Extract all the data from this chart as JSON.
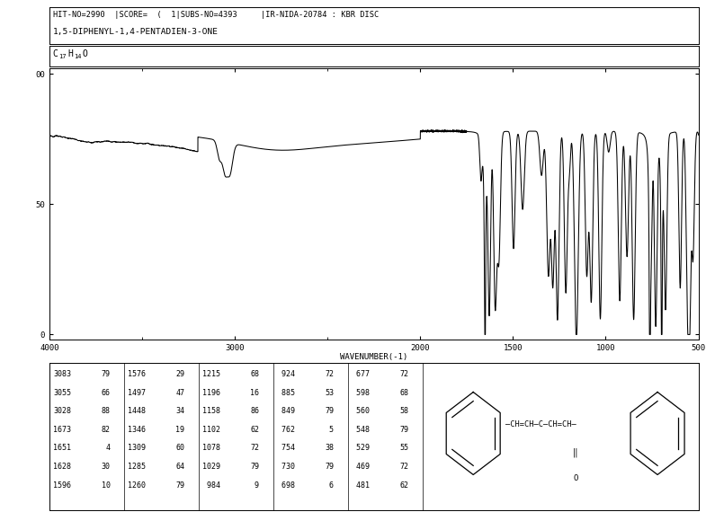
{
  "title_line1": "HIT-NO=2990  |SCORE=  (  1|SUBS-NO=4393     |IR-NIDA-20784 : KBR DISC",
  "title_line2": "1,5-DIPHENYL-1,4-PENTADIEN-3-ONE",
  "xlabel": "WAVENUMBER(-1)",
  "xmin": 4000,
  "xmax": 500,
  "ymin": 0,
  "ymax": 100,
  "xticks": [
    4000,
    3000,
    2000,
    1500,
    1000,
    500
  ],
  "peak_table": [
    [
      3083,
      79,
      1576,
      29,
      1215,
      68,
      924,
      72,
      677,
      72
    ],
    [
      3055,
      66,
      1497,
      47,
      1196,
      16,
      885,
      53,
      598,
      68
    ],
    [
      3028,
      88,
      1448,
      34,
      1158,
      86,
      849,
      79,
      560,
      58
    ],
    [
      1673,
      82,
      1346,
      19,
      1102,
      62,
      762,
      5,
      548,
      79
    ],
    [
      1651,
      4,
      1309,
      60,
      1078,
      72,
      754,
      38,
      529,
      55
    ],
    [
      1628,
      30,
      1285,
      64,
      1029,
      79,
      730,
      79,
      469,
      72
    ],
    [
      1596,
      10,
      1260,
      79,
      984,
      9,
      698,
      6,
      481,
      62
    ]
  ]
}
